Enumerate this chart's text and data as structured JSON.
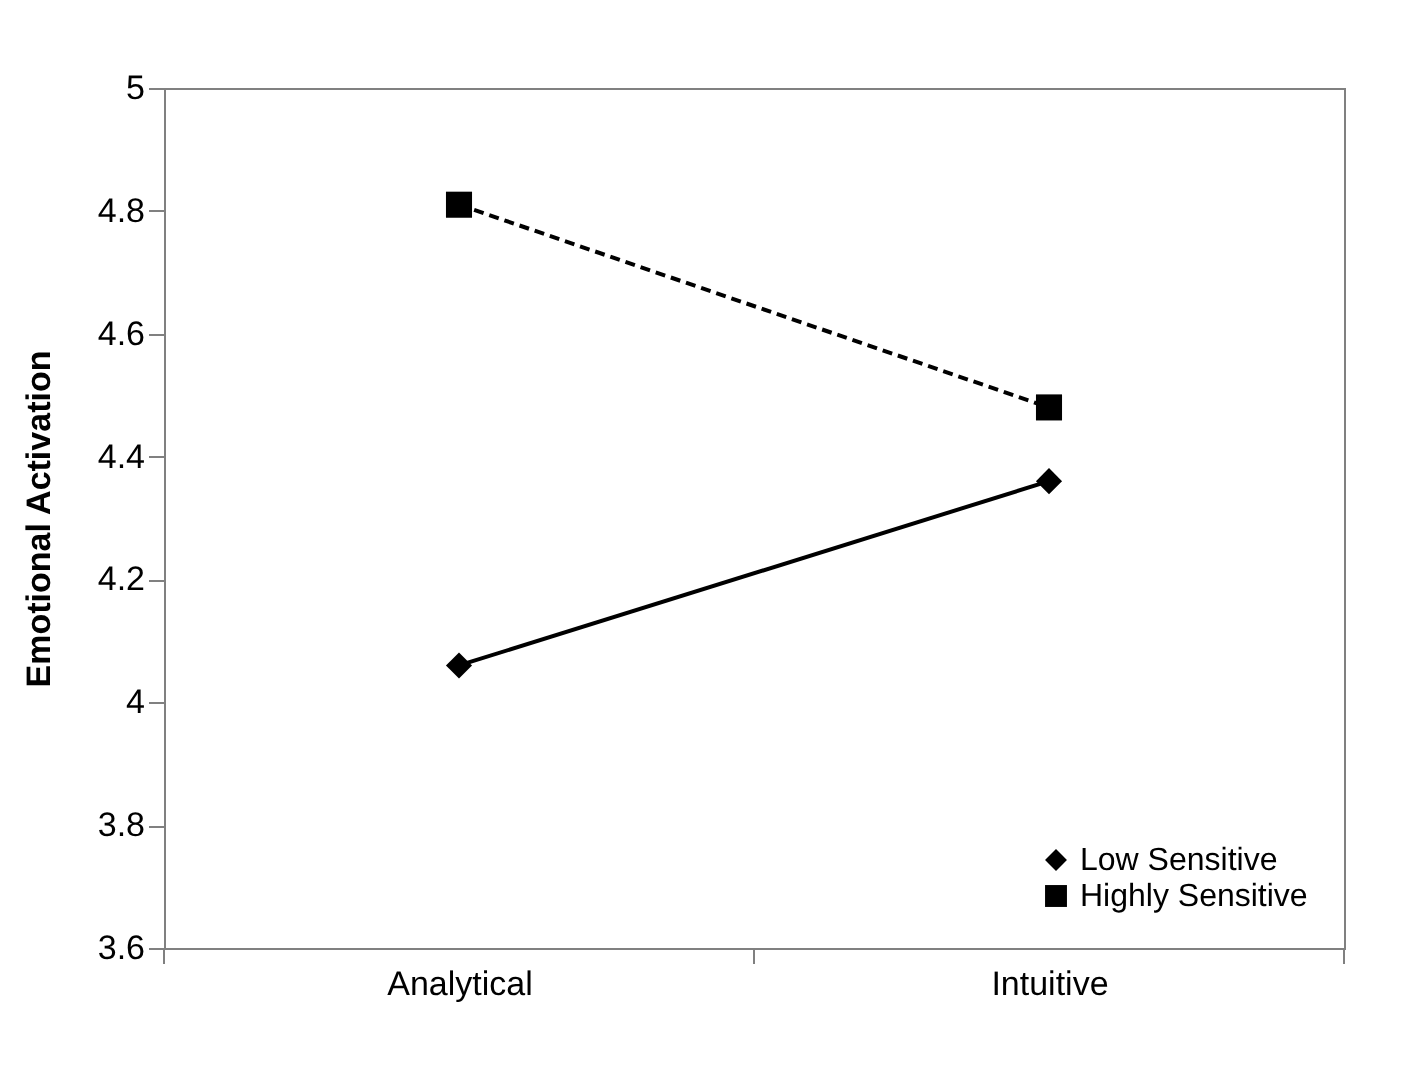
{
  "chart_data": {
    "type": "line",
    "ylabel": "Emotional Activation",
    "categories": [
      "Analytical",
      "Intuitive"
    ],
    "series": [
      {
        "name": "Low Sensitive",
        "color": "#000000",
        "values": [
          4.06,
          4.36
        ],
        "marker": "diamond",
        "line_style": "solid"
      },
      {
        "name": "Highly Sensitive",
        "color": "#000000",
        "values": [
          4.81,
          4.48
        ],
        "marker": "square",
        "line_style": "dashed"
      }
    ],
    "ylim": [
      3.6,
      5
    ],
    "yticks": [
      3.6,
      3.8,
      4,
      4.2,
      4.4,
      4.6,
      4.8,
      5
    ],
    "grid": false,
    "legend": "bottom right"
  }
}
